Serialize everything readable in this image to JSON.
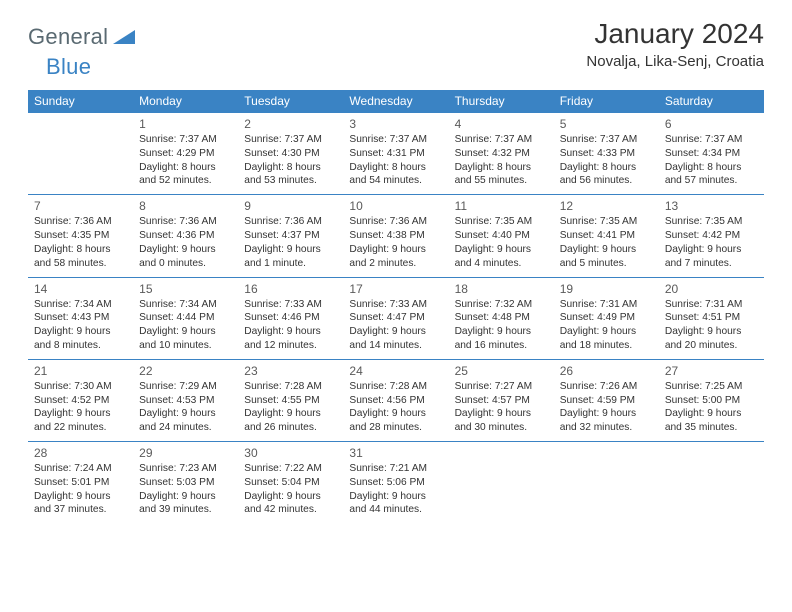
{
  "brand": {
    "word1": "General",
    "word2": "Blue"
  },
  "title": "January 2024",
  "location": "Novalja, Lika-Senj, Croatia",
  "headers": [
    "Sunday",
    "Monday",
    "Tuesday",
    "Wednesday",
    "Thursday",
    "Friday",
    "Saturday"
  ],
  "colors": {
    "header_bg": "#3a83c4",
    "header_text": "#ffffff",
    "row_border": "#3a83c4",
    "logo_gray": "#5a6a72",
    "logo_blue": "#3a83c4"
  },
  "weeks": [
    [
      null,
      {
        "d": "1",
        "r": "7:37 AM",
        "s": "4:29 PM",
        "dl": "8 hours and 52 minutes."
      },
      {
        "d": "2",
        "r": "7:37 AM",
        "s": "4:30 PM",
        "dl": "8 hours and 53 minutes."
      },
      {
        "d": "3",
        "r": "7:37 AM",
        "s": "4:31 PM",
        "dl": "8 hours and 54 minutes."
      },
      {
        "d": "4",
        "r": "7:37 AM",
        "s": "4:32 PM",
        "dl": "8 hours and 55 minutes."
      },
      {
        "d": "5",
        "r": "7:37 AM",
        "s": "4:33 PM",
        "dl": "8 hours and 56 minutes."
      },
      {
        "d": "6",
        "r": "7:37 AM",
        "s": "4:34 PM",
        "dl": "8 hours and 57 minutes."
      }
    ],
    [
      {
        "d": "7",
        "r": "7:36 AM",
        "s": "4:35 PM",
        "dl": "8 hours and 58 minutes."
      },
      {
        "d": "8",
        "r": "7:36 AM",
        "s": "4:36 PM",
        "dl": "9 hours and 0 minutes."
      },
      {
        "d": "9",
        "r": "7:36 AM",
        "s": "4:37 PM",
        "dl": "9 hours and 1 minute."
      },
      {
        "d": "10",
        "r": "7:36 AM",
        "s": "4:38 PM",
        "dl": "9 hours and 2 minutes."
      },
      {
        "d": "11",
        "r": "7:35 AM",
        "s": "4:40 PM",
        "dl": "9 hours and 4 minutes."
      },
      {
        "d": "12",
        "r": "7:35 AM",
        "s": "4:41 PM",
        "dl": "9 hours and 5 minutes."
      },
      {
        "d": "13",
        "r": "7:35 AM",
        "s": "4:42 PM",
        "dl": "9 hours and 7 minutes."
      }
    ],
    [
      {
        "d": "14",
        "r": "7:34 AM",
        "s": "4:43 PM",
        "dl": "9 hours and 8 minutes."
      },
      {
        "d": "15",
        "r": "7:34 AM",
        "s": "4:44 PM",
        "dl": "9 hours and 10 minutes."
      },
      {
        "d": "16",
        "r": "7:33 AM",
        "s": "4:46 PM",
        "dl": "9 hours and 12 minutes."
      },
      {
        "d": "17",
        "r": "7:33 AM",
        "s": "4:47 PM",
        "dl": "9 hours and 14 minutes."
      },
      {
        "d": "18",
        "r": "7:32 AM",
        "s": "4:48 PM",
        "dl": "9 hours and 16 minutes."
      },
      {
        "d": "19",
        "r": "7:31 AM",
        "s": "4:49 PM",
        "dl": "9 hours and 18 minutes."
      },
      {
        "d": "20",
        "r": "7:31 AM",
        "s": "4:51 PM",
        "dl": "9 hours and 20 minutes."
      }
    ],
    [
      {
        "d": "21",
        "r": "7:30 AM",
        "s": "4:52 PM",
        "dl": "9 hours and 22 minutes."
      },
      {
        "d": "22",
        "r": "7:29 AM",
        "s": "4:53 PM",
        "dl": "9 hours and 24 minutes."
      },
      {
        "d": "23",
        "r": "7:28 AM",
        "s": "4:55 PM",
        "dl": "9 hours and 26 minutes."
      },
      {
        "d": "24",
        "r": "7:28 AM",
        "s": "4:56 PM",
        "dl": "9 hours and 28 minutes."
      },
      {
        "d": "25",
        "r": "7:27 AM",
        "s": "4:57 PM",
        "dl": "9 hours and 30 minutes."
      },
      {
        "d": "26",
        "r": "7:26 AM",
        "s": "4:59 PM",
        "dl": "9 hours and 32 minutes."
      },
      {
        "d": "27",
        "r": "7:25 AM",
        "s": "5:00 PM",
        "dl": "9 hours and 35 minutes."
      }
    ],
    [
      {
        "d": "28",
        "r": "7:24 AM",
        "s": "5:01 PM",
        "dl": "9 hours and 37 minutes."
      },
      {
        "d": "29",
        "r": "7:23 AM",
        "s": "5:03 PM",
        "dl": "9 hours and 39 minutes."
      },
      {
        "d": "30",
        "r": "7:22 AM",
        "s": "5:04 PM",
        "dl": "9 hours and 42 minutes."
      },
      {
        "d": "31",
        "r": "7:21 AM",
        "s": "5:06 PM",
        "dl": "9 hours and 44 minutes."
      },
      null,
      null,
      null
    ]
  ],
  "labels": {
    "sunrise": "Sunrise: ",
    "sunset": "Sunset: ",
    "daylight": "Daylight: "
  }
}
